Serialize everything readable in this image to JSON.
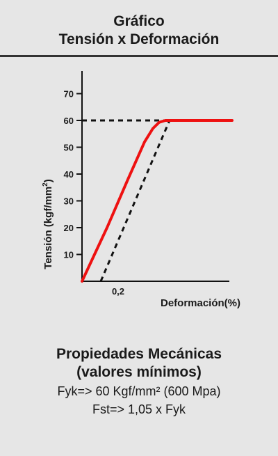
{
  "header": {
    "title_line1": "Gráfico",
    "title_line2": "Tensión x Deformación"
  },
  "chart_data": {
    "type": "line",
    "ylabel": "Tensión (kgf/mm²)",
    "ylabel_main": "Tensión (kgf/mm",
    "ylabel_sup": "2",
    "ylabel_tail": ")",
    "xlabel": "Deformación(%)",
    "ylim": [
      0,
      75
    ],
    "xlim": [
      0,
      1.0
    ],
    "yticks": [
      10,
      20,
      30,
      40,
      50,
      60,
      70
    ],
    "xtick_labels": [
      {
        "value": 0.2,
        "label": "0,2"
      }
    ],
    "grid": false,
    "series": [
      {
        "style": "solid",
        "color": "#ee1111",
        "x": [
          0,
          0.12,
          0.22,
          0.3,
          0.34,
          0.37,
          0.4,
          0.44,
          0.72
        ],
        "y": [
          0,
          20,
          38,
          52,
          57,
          59.3,
          60,
          60,
          60
        ]
      },
      {
        "style": "dashed",
        "color": "#111111",
        "x": [
          0.09,
          0.42
        ],
        "y": [
          0,
          60
        ]
      },
      {
        "style": "dashed",
        "color": "#111111",
        "x": [
          0,
          0.42
        ],
        "y": [
          60,
          60
        ]
      }
    ]
  },
  "props": {
    "heading1": "Propiedades Mecánicas",
    "heading2": "(valores mínimos)",
    "line1": "Fyk=> 60 Kgf/mm² (600 Mpa)",
    "line2": "Fst=> 1,05 x Fyk"
  }
}
